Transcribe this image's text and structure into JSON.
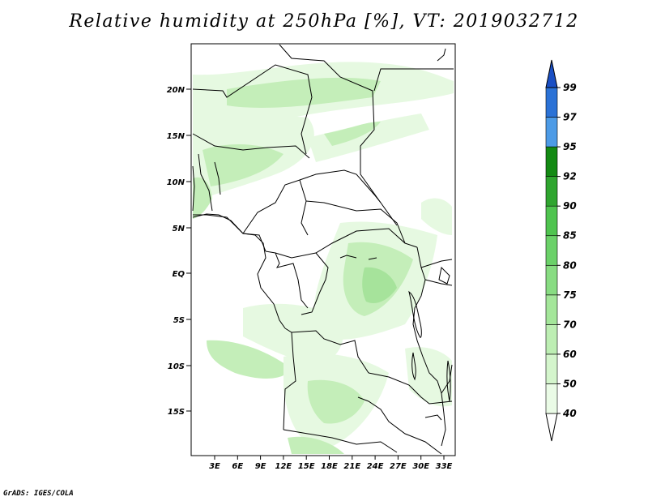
{
  "title": "Relative humidity at 250hPa [%], VT: 2019032712",
  "credit": "GrADS: IGES/COLA",
  "map": {
    "lat_labels": [
      "20N",
      "15N",
      "10N",
      "5N",
      "EQ",
      "5S",
      "10S",
      "15S"
    ],
    "lon_labels": [
      "3E",
      "6E",
      "9E",
      "12E",
      "15E",
      "18E",
      "21E",
      "24E",
      "27E",
      "30E",
      "33E"
    ],
    "field": "relative humidity",
    "level": "250hPa",
    "unit": "%",
    "valid_time": "2019032712"
  },
  "colorbar": {
    "levels": [
      "40",
      "50",
      "60",
      "70",
      "75",
      "80",
      "85",
      "90",
      "92",
      "95",
      "97",
      "99"
    ],
    "colors": [
      "#ffffff",
      "#eafbe6",
      "#d4f5cc",
      "#bdeeb3",
      "#a4e69a",
      "#88dc82",
      "#6bd169",
      "#4fc44f",
      "#2fa52f",
      "#138a13",
      "#4d9be6",
      "#2b72d6",
      "#1a4fc4"
    ]
  },
  "colors": {
    "land_border": "#000000",
    "humidity_light": "#e6f9e1",
    "humidity_mid": "#c4eeb9",
    "humidity_dark": "#a6e39b"
  }
}
